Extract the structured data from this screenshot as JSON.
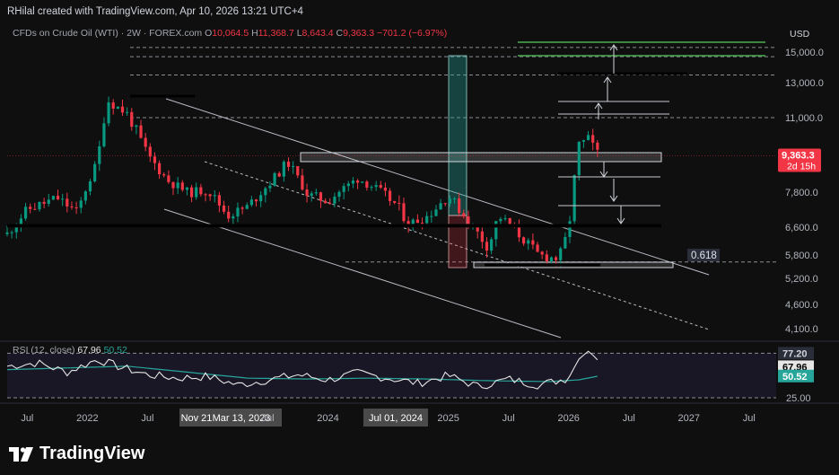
{
  "header": {
    "created_by": "RHilal created with TradingView.com, Apr 10, 2026 13:21 UTC+4"
  },
  "brand": {
    "name": "TradingView",
    "icon": "tradingview-logo-icon"
  },
  "legend": {
    "symbol": "CFDs on Crude Oil (WTI) · 2W · FOREX.com",
    "open_label": "O",
    "open": "10,064.5",
    "high_label": "H",
    "high": "11,368.7",
    "low_label": "L",
    "low": "8,643.4",
    "close_label": "C",
    "close": "9,363.3",
    "change": "−701.2 (−6.97%)"
  },
  "currency": "USD",
  "price_badge": {
    "price": "9,363.3",
    "countdown": "2d 15h"
  },
  "fib_label": "0.618",
  "rsi_legend": {
    "label": "RSI (12, close)",
    "rsi": "67.96",
    "ma": "50.52"
  },
  "colors": {
    "background": "#0f0f0f",
    "up": "#089981",
    "down": "#f23645",
    "rsi_line": "#e6e6e6",
    "rsi_ma": "#26a69a",
    "fib_green": "#4caf50",
    "rsi_band": "#1e1b2e"
  },
  "chart_data": [
    {
      "type": "candlestick",
      "title": "CFDs on Crude Oil (WTI) · 2W · FOREX.com",
      "ylabel": "USD",
      "y_axis_ticks": [
        {
          "value": 15000,
          "label": "15,000.0"
        },
        {
          "value": 13000,
          "label": "13,000.0"
        },
        {
          "value": 11000,
          "label": "11,000.0"
        },
        {
          "value": 7800,
          "label": "7,800.0"
        },
        {
          "value": 6600,
          "label": "6,600.0"
        },
        {
          "value": 5800,
          "label": "5,800.0"
        },
        {
          "value": 5200,
          "label": "5,200.0"
        },
        {
          "value": 4600,
          "label": "4,600.0"
        },
        {
          "value": 4100,
          "label": "4,100.0"
        }
      ],
      "x_axis_ticks": [
        "Jul",
        "2022",
        "Jul",
        "Nov 21",
        "Mar 13, 2023",
        "Jul",
        "2024",
        "Jul 01, 2024",
        "2025",
        "Jul",
        "2026",
        "Jul",
        "2027",
        "Jul"
      ],
      "highlighted_x_labels": [
        "Nov 21",
        "Mar 13, 2023",
        "Jul 01, 2024"
      ],
      "last_price": 9363.3,
      "key_levels": [
        {
          "name": "support-6600",
          "value": 6650,
          "style": "thick"
        },
        {
          "name": "resistance-zone-9400",
          "value": 9400,
          "style": "zone"
        },
        {
          "name": "fib-0.618",
          "value": 5620,
          "style": "dashed"
        },
        {
          "name": "level-11000",
          "value": 11000,
          "style": "dashed"
        },
        {
          "name": "level-13500",
          "value": 13500,
          "style": "dashed"
        },
        {
          "name": "level-14700",
          "value": 14700,
          "style": "dashed"
        },
        {
          "name": "level-15300",
          "value": 15300,
          "style": "dashed"
        }
      ],
      "price_path": [
        [
          "2021-05",
          6400
        ],
        [
          "2021-07",
          7200
        ],
        [
          "2021-10",
          7600
        ],
        [
          "2021-12",
          7100
        ],
        [
          "2022-02",
          9100
        ],
        [
          "2022-03",
          12000
        ],
        [
          "2022-05",
          11200
        ],
        [
          "2022-07",
          9400
        ],
        [
          "2022-09",
          8300
        ],
        [
          "2022-11",
          7800
        ],
        [
          "2023-01",
          7900
        ],
        [
          "2023-03",
          7000
        ],
        [
          "2023-05",
          7300
        ],
        [
          "2023-07",
          8100
        ],
        [
          "2023-09",
          9100
        ],
        [
          "2023-11",
          7700
        ],
        [
          "2024-01",
          7500
        ],
        [
          "2024-04",
          8400
        ],
        [
          "2024-06",
          7900
        ],
        [
          "2024-08",
          7300
        ],
        [
          "2024-09",
          6700
        ],
        [
          "2024-11",
          7000
        ],
        [
          "2025-01",
          7700
        ],
        [
          "2025-03",
          6800
        ],
        [
          "2025-05",
          6000
        ],
        [
          "2025-06",
          7000
        ],
        [
          "2025-08",
          6400
        ],
        [
          "2025-10",
          5800
        ],
        [
          "2025-12",
          5700
        ],
        [
          "2026-01",
          6500
        ],
        [
          "2026-02",
          9800
        ],
        [
          "2026-03",
          10064.5
        ],
        [
          "2026-04",
          9363.3
        ]
      ]
    },
    {
      "type": "line",
      "title": "RSI (12, close)",
      "series": [
        {
          "name": "RSI",
          "last": 67.96
        },
        {
          "name": "RSI MA",
          "last": 50.52
        }
      ],
      "levels": [
        {
          "value": 77.2,
          "label": "77.20"
        },
        {
          "value": 25,
          "label": "25.00"
        }
      ],
      "rsi_path": [
        [
          "2021-05",
          62
        ],
        [
          "2021-08",
          66
        ],
        [
          "2021-11",
          55
        ],
        [
          "2022-02",
          70
        ],
        [
          "2022-04",
          62
        ],
        [
          "2022-07",
          52
        ],
        [
          "2022-10",
          48
        ],
        [
          "2023-01",
          50
        ],
        [
          "2023-04",
          40
        ],
        [
          "2023-07",
          46
        ],
        [
          "2023-10",
          52
        ],
        [
          "2024-01",
          46
        ],
        [
          "2024-04",
          54
        ],
        [
          "2024-07",
          48
        ],
        [
          "2024-10",
          42
        ],
        [
          "2025-01",
          51
        ],
        [
          "2025-04",
          38
        ],
        [
          "2025-07",
          47
        ],
        [
          "2025-10",
          40
        ],
        [
          "2026-01",
          48
        ],
        [
          "2026-02",
          70
        ],
        [
          "2026-03",
          80
        ],
        [
          "2026-04",
          67.96
        ]
      ],
      "ma_path": [
        [
          "2021-05",
          58
        ],
        [
          "2021-11",
          60
        ],
        [
          "2022-05",
          62
        ],
        [
          "2022-11",
          55
        ],
        [
          "2023-05",
          48
        ],
        [
          "2023-11",
          47
        ],
        [
          "2024-05",
          48
        ],
        [
          "2024-11",
          47
        ],
        [
          "2025-05",
          45
        ],
        [
          "2025-11",
          44
        ],
        [
          "2026-02",
          46
        ],
        [
          "2026-04",
          50.52
        ]
      ]
    }
  ]
}
